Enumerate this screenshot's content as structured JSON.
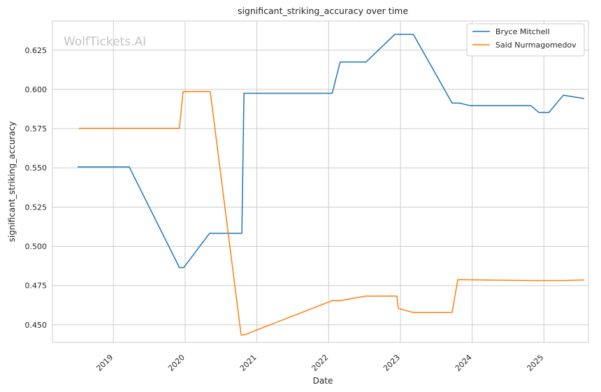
{
  "chart_data": {
    "type": "line",
    "title": "significant_striking_accuracy over time",
    "xlabel": "Date",
    "ylabel": "significant_striking_accuracy",
    "watermark": "WolfTickets.AI",
    "xlim": [
      2018.15,
      2025.62
    ],
    "ylim": [
      0.4388,
      0.6436
    ],
    "x_ticks": [
      2019,
      2020,
      2021,
      2022,
      2023,
      2024,
      2025
    ],
    "x_tick_labels": [
      "2019",
      "2020",
      "2021",
      "2022",
      "2023",
      "2024",
      "2025"
    ],
    "y_ticks": [
      0.45,
      0.475,
      0.5,
      0.525,
      0.55,
      0.575,
      0.6,
      0.625
    ],
    "y_tick_labels": [
      "0.450",
      "0.475",
      "0.500",
      "0.525",
      "0.550",
      "0.575",
      "0.600",
      "0.625"
    ],
    "grid": true,
    "legend_position": "top-right",
    "series": [
      {
        "name": "Bryce Mitchell",
        "color": "#1f77b4",
        "points": [
          [
            2018.5,
            0.5506
          ],
          [
            2019.22,
            0.5506
          ],
          [
            2019.92,
            0.4865
          ],
          [
            2019.98,
            0.4865
          ],
          [
            2020.34,
            0.5083
          ],
          [
            2020.79,
            0.5083
          ],
          [
            2020.82,
            0.5975
          ],
          [
            2022.05,
            0.5975
          ],
          [
            2022.16,
            0.6174
          ],
          [
            2022.52,
            0.6174
          ],
          [
            2022.92,
            0.635
          ],
          [
            2023.18,
            0.635
          ],
          [
            2023.72,
            0.5913
          ],
          [
            2023.82,
            0.5913
          ],
          [
            2023.98,
            0.5896
          ],
          [
            2024.82,
            0.5896
          ],
          [
            2024.93,
            0.5853
          ],
          [
            2025.07,
            0.5853
          ],
          [
            2025.27,
            0.5963
          ],
          [
            2025.56,
            0.5942
          ]
        ]
      },
      {
        "name": "Said Nurmagomedov",
        "color": "#ff7f0e",
        "points": [
          [
            2018.52,
            0.5752
          ],
          [
            2019.92,
            0.5752
          ],
          [
            2019.97,
            0.5985
          ],
          [
            2020.35,
            0.5985
          ],
          [
            2020.78,
            0.4435
          ],
          [
            2020.82,
            0.4435
          ],
          [
            2022.05,
            0.4654
          ],
          [
            2022.16,
            0.4654
          ],
          [
            2022.52,
            0.4683
          ],
          [
            2022.95,
            0.4683
          ],
          [
            2022.97,
            0.4605
          ],
          [
            2023.18,
            0.4578
          ],
          [
            2023.72,
            0.4578
          ],
          [
            2023.8,
            0.4788
          ],
          [
            2024.82,
            0.4782
          ],
          [
            2025.27,
            0.4782
          ],
          [
            2025.56,
            0.4786
          ]
        ]
      }
    ]
  }
}
